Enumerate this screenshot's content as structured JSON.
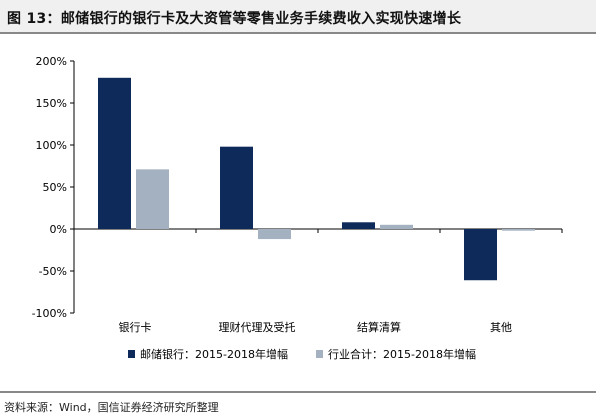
{
  "title": "图 13：邮储银行的银行卡及大资管等零售业务手续费收入实现快速增长",
  "source": "资料来源：Wind，国信证券经济研究所整理",
  "colors": {
    "series1": "#0d2a5a",
    "series2": "#a4b1c0"
  },
  "chart_data": {
    "type": "bar",
    "categories": [
      "银行卡",
      "理财代理及受托",
      "结算清算",
      "其他"
    ],
    "series": [
      {
        "name": "邮储银行：2015-2018年增幅",
        "values": [
          180,
          98,
          8,
          -61
        ]
      },
      {
        "name": "行业合计：2015-2018年增幅",
        "values": [
          71,
          -12,
          5,
          -2
        ]
      }
    ],
    "ylim": [
      -100,
      200
    ],
    "yticks": [
      -100,
      -50,
      0,
      50,
      100,
      150,
      200
    ],
    "ytick_labels": [
      "-100%",
      "-50%",
      "0%",
      "50%",
      "100%",
      "150%",
      "200%"
    ],
    "grid": false,
    "legend_position": "bottom"
  }
}
